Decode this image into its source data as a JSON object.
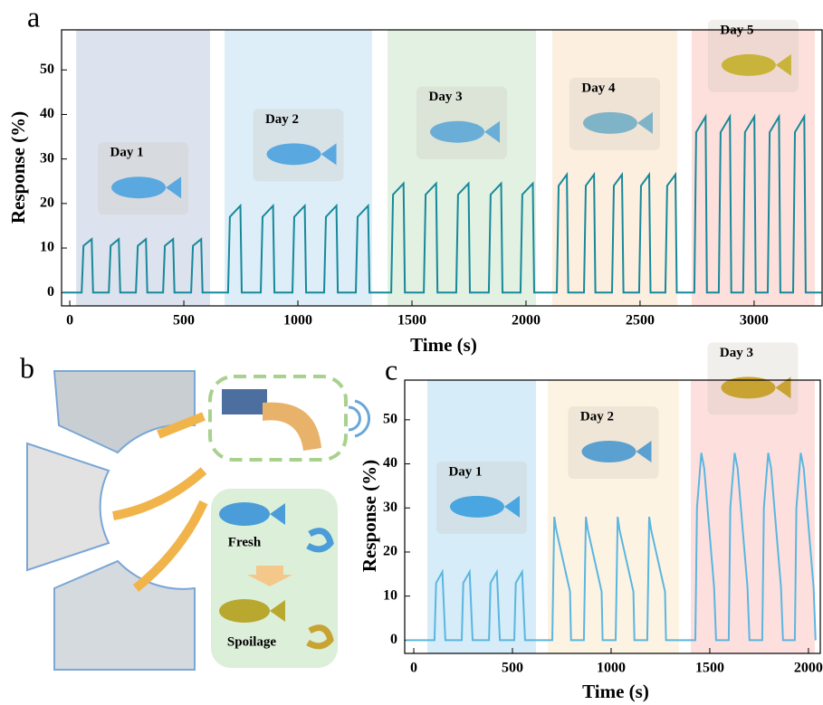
{
  "chart_data": [
    {
      "type": "line",
      "panel_label": "a",
      "x_label": "Time (s)",
      "y_label": "Response (%)",
      "color": "#17899a",
      "xlim": [
        -36,
        3298
      ],
      "ylim": [
        -3,
        59
      ],
      "xticks": [
        0,
        500,
        1000,
        1500,
        2000,
        2500,
        3000
      ],
      "yticks": [
        0,
        10,
        20,
        30,
        40,
        50
      ],
      "bands": [
        {
          "label": "Day 1",
          "range": [
            28,
            615
          ],
          "color": "#dde3ee"
        },
        {
          "label": "Day 2",
          "range": [
            679,
            1325
          ],
          "color": "#ddeef8"
        },
        {
          "label": "Day 3",
          "range": [
            1393,
            2044
          ],
          "color": "#e2f1e2"
        },
        {
          "label": "Day 4",
          "range": [
            2115,
            2663
          ],
          "color": "#fcefe0"
        },
        {
          "label": "Day 5",
          "range": [
            2726,
            3266
          ],
          "color": "#fde0dc"
        }
      ],
      "x": [
        -30,
        52,
        60,
        96,
        102,
        171,
        179,
        215,
        221,
        290,
        298,
        334,
        340,
        409,
        417,
        453,
        459,
        532,
        540,
        576,
        582,
        694,
        702,
        748,
        754,
        837,
        845,
        891,
        897,
        976,
        984,
        1030,
        1036,
        1115,
        1123,
        1169,
        1175,
        1254,
        1262,
        1308,
        1314,
        1409,
        1417,
        1463,
        1469,
        1552,
        1560,
        1606,
        1612,
        1694,
        1702,
        1748,
        1754,
        1837,
        1845,
        1891,
        1897,
        1976,
        1984,
        2030,
        2036,
        2135,
        2143,
        2179,
        2185,
        2254,
        2262,
        2298,
        2304,
        2377,
        2385,
        2421,
        2427,
        2496,
        2504,
        2540,
        2546,
        2611,
        2619,
        2655,
        2661,
        2738,
        2746,
        2787,
        2793,
        2845,
        2853,
        2894,
        2900,
        2952,
        2960,
        3001,
        3007,
        3060,
        3068,
        3109,
        3115,
        3171,
        3179,
        3220,
        3226,
        3295
      ],
      "values": [
        0,
        0,
        10.5,
        12,
        0,
        0,
        10.5,
        12,
        0,
        0,
        10.5,
        12,
        0,
        0,
        10.5,
        12,
        0,
        0,
        10.5,
        12,
        0,
        0,
        17,
        19.5,
        0,
        0,
        17,
        19.5,
        0,
        0,
        17,
        19.5,
        0,
        0,
        17,
        19.5,
        0,
        0,
        17,
        19.5,
        0,
        0,
        22,
        24.5,
        0,
        0,
        22,
        24.5,
        0,
        0,
        22,
        24.5,
        0,
        0,
        22,
        24.5,
        0,
        0,
        22,
        24.5,
        0,
        0,
        24,
        26.5,
        0,
        0,
        24,
        26.5,
        0,
        0,
        24,
        26.5,
        0,
        0,
        24,
        26.5,
        0,
        0,
        24,
        26.5,
        0,
        0,
        36,
        39.5,
        0,
        0,
        36,
        39.5,
        0,
        0,
        36,
        39.5,
        0,
        0,
        36,
        39.5,
        0,
        0,
        36,
        39.5,
        0,
        0
      ]
    },
    {
      "type": "line",
      "panel_label": "c",
      "x_label": "Time (s)",
      "y_label": "Response (%)",
      "color": "#5bb6e0",
      "xlim": [
        -46,
        2060
      ],
      "ylim": [
        -3,
        59
      ],
      "xticks": [
        0,
        500,
        1000,
        1500,
        2000
      ],
      "yticks": [
        0,
        10,
        20,
        30,
        40,
        50
      ],
      "bands": [
        {
          "label": "Day 1",
          "range": [
            69,
            619
          ],
          "color": "#d6ecf8"
        },
        {
          "label": "Day 2",
          "range": [
            679,
            1344
          ],
          "color": "#fdf3e3"
        },
        {
          "label": "Day 3",
          "range": [
            1404,
            2032
          ],
          "color": "#fde0de"
        }
      ],
      "x": [
        -40,
        105,
        113,
        145,
        160,
        243,
        251,
        283,
        298,
        381,
        389,
        421,
        436,
        509,
        517,
        549,
        564,
        702,
        712,
        722,
        792,
        797,
        862,
        872,
        882,
        952,
        957,
        1023,
        1033,
        1043,
        1113,
        1118,
        1183,
        1193,
        1203,
        1273,
        1278,
        1427,
        1435,
        1457,
        1472,
        1522,
        1532,
        1596,
        1604,
        1626,
        1641,
        1691,
        1701,
        1766,
        1774,
        1796,
        1811,
        1861,
        1871,
        1931,
        1939,
        1961,
        1976,
        2026,
        2036
      ],
      "values": [
        0,
        0,
        13,
        15.5,
        0,
        0,
        13,
        15.5,
        0,
        0,
        13,
        15.5,
        0,
        0,
        13,
        15.5,
        0,
        0,
        28,
        25,
        11,
        0,
        0,
        28,
        25,
        11,
        0,
        0,
        28,
        25,
        11,
        0,
        0,
        28,
        25,
        11,
        0,
        0,
        30,
        42.5,
        39,
        12,
        0,
        0,
        30,
        42.5,
        39,
        12,
        0,
        0,
        30,
        42.5,
        39,
        12,
        0,
        0,
        30,
        42.5,
        39,
        12,
        0
      ]
    }
  ],
  "panel_b": {
    "label": "b",
    "fresh": "Fresh",
    "spoilage": "Spoilage"
  }
}
